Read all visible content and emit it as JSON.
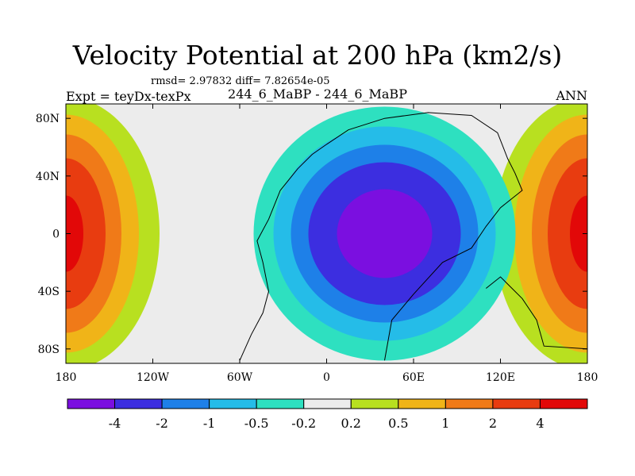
{
  "header": {
    "title": "Velocity Potential at 200 hPa (km2/s)",
    "stats": "rmsd= 2.97832 diff= 7.82654e-05",
    "experiment": "Expt = teyDx-texPx",
    "case": "244_6_MaBP - 244_6_MaBP",
    "season": "ANN"
  },
  "chart_data": {
    "type": "heatmap",
    "title": "Velocity Potential at 200 hPa (km2/s)",
    "xlabel": "",
    "ylabel": "",
    "xlim": [
      -180,
      180
    ],
    "ylim": [
      -90,
      90
    ],
    "x_ticks": [
      {
        "value": -180,
        "label": "180"
      },
      {
        "value": -120,
        "label": "120W"
      },
      {
        "value": -60,
        "label": "60W"
      },
      {
        "value": 0,
        "label": "0"
      },
      {
        "value": 60,
        "label": "60E"
      },
      {
        "value": 120,
        "label": "120E"
      },
      {
        "value": 180,
        "label": "180"
      }
    ],
    "y_ticks": [
      {
        "value": 80,
        "label": "80N"
      },
      {
        "value": 40,
        "label": "40N"
      },
      {
        "value": 0,
        "label": "0"
      },
      {
        "value": -40,
        "label": "40S"
      },
      {
        "value": -80,
        "label": "80S"
      }
    ],
    "field_centers": [
      {
        "name": "min",
        "lon": 40,
        "lat": 0,
        "value": -4.5
      },
      {
        "name": "max",
        "lon": 180,
        "lat": 0,
        "value": 4.5
      }
    ],
    "colorbar": {
      "levels": [
        "-4",
        "-2",
        "-1",
        "-0.5",
        "-0.2",
        "0.2",
        "0.5",
        "1",
        "2",
        "4"
      ],
      "colors": [
        "#7b0fe0",
        "#3c2ee0",
        "#1e80e8",
        "#25bce8",
        "#2ee0c0",
        "#ececec",
        "#b8e020",
        "#f0b418",
        "#f07a18",
        "#e83c10",
        "#e20808"
      ]
    }
  }
}
